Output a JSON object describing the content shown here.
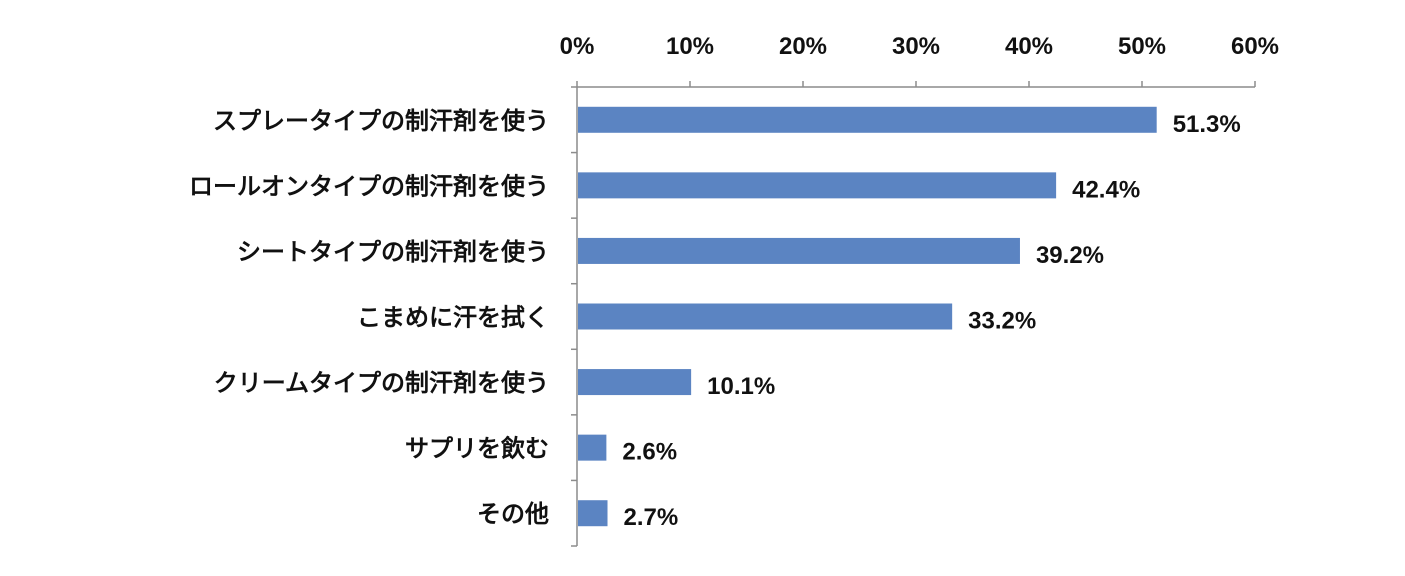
{
  "chart_data": {
    "type": "bar",
    "orientation": "horizontal",
    "categories": [
      "スプレータイプの制汗剤を使う",
      "ロールオンタイプの制汗剤を使う",
      "シートタイプの制汗剤を使う",
      "こまめに汗を拭く",
      "クリームタイプの制汗剤を使う",
      "サプリを飲む",
      "その他"
    ],
    "values": [
      51.3,
      42.4,
      39.2,
      33.2,
      10.1,
      2.6,
      2.7
    ],
    "data_labels": [
      "51.3%",
      "42.4%",
      "39.2%",
      "33.2%",
      "10.1%",
      "2.6%",
      "2.7%"
    ],
    "x_ticks": [
      "0%",
      "10%",
      "20%",
      "30%",
      "40%",
      "50%",
      "60%"
    ],
    "xlim": [
      0,
      60
    ],
    "x_axis_position": "top",
    "grid": false,
    "legend": "none",
    "bar_color": "#5b84c2",
    "title": "",
    "xlabel": "",
    "ylabel": ""
  }
}
